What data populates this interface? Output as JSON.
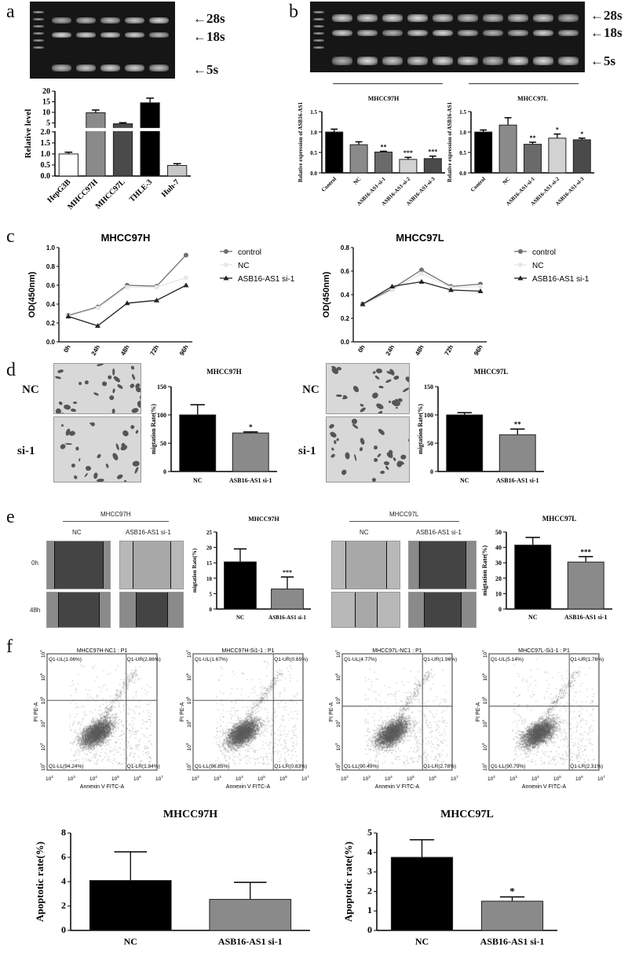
{
  "panel_letters": {
    "a": "a",
    "b": "b",
    "c": "c",
    "d": "d",
    "e": "e",
    "f": "f"
  },
  "gel_labels": {
    "s28": "←28s",
    "s18": "←18s",
    "s5": "←5s"
  },
  "chart_data": [
    {
      "id": "a",
      "type": "bar",
      "title": "",
      "ylabel": "Relative level",
      "categories": [
        "HepG3B",
        "MHCC97H",
        "MHCC97L",
        "THLE-3",
        "Huh-7"
      ],
      "values": [
        1.0,
        9.8,
        4.6,
        14.5,
        0.48
      ],
      "errors": [
        0.08,
        1.3,
        0.5,
        2.2,
        0.08
      ],
      "colors": [
        "#ffffff",
        "#8a8a8a",
        "#4a4a4a",
        "#000000",
        "#c8c8c8"
      ],
      "ylim": [
        0,
        20
      ],
      "axis_break": [
        2,
        3
      ],
      "yticks_lower": [
        "0.0",
        "0.5",
        "1.0",
        "1.5",
        "2.0"
      ],
      "yticks_upper": [
        "5",
        "10",
        "15",
        "20"
      ],
      "sig": [
        "",
        "",
        "",
        "",
        ""
      ]
    },
    {
      "id": "bH",
      "type": "bar",
      "title": "MHCC97H",
      "ylabel": "Relative expression of ASB16-AS1",
      "categories": [
        "Control",
        "NC",
        "ASB16-AS1-si-1",
        "ASB16-AS1-si-2",
        "ASB16-AS1-si-3"
      ],
      "values": [
        1.0,
        0.69,
        0.51,
        0.33,
        0.35
      ],
      "errors": [
        0.07,
        0.07,
        0.02,
        0.05,
        0.06
      ],
      "colors": [
        "#000000",
        "#8a8a8a",
        "#6a6a6a",
        "#d2d2d2",
        "#4a4a4a"
      ],
      "ylim": [
        0,
        1.5
      ],
      "yticks": [
        "0.0",
        "0.5",
        "1.0",
        "1.5"
      ],
      "sig": [
        "",
        "",
        "**",
        "***",
        "***"
      ]
    },
    {
      "id": "bL",
      "type": "bar",
      "title": "MHCC97L",
      "ylabel": "Relative expression of ASB16-AS1",
      "categories": [
        "Control",
        "NC",
        "ASB16-AS1-si-1",
        "ASB16-AS1-si-2",
        "ASB16-AS1-si-3"
      ],
      "values": [
        1.0,
        1.17,
        0.7,
        0.85,
        0.81
      ],
      "errors": [
        0.05,
        0.18,
        0.05,
        0.1,
        0.04
      ],
      "colors": [
        "#000000",
        "#8a8a8a",
        "#6a6a6a",
        "#d2d2d2",
        "#4a4a4a"
      ],
      "ylim": [
        0,
        1.5
      ],
      "yticks": [
        "0.0",
        "0.5",
        "1.0",
        "1.5"
      ],
      "sig": [
        "",
        "",
        "**",
        "*",
        "*"
      ]
    },
    {
      "id": "cH",
      "type": "line",
      "title": "MHCC97H",
      "ylabel": "OD(450nm)",
      "x": [
        "0h",
        "24h",
        "48h",
        "72h",
        "96h"
      ],
      "ylim": [
        0,
        1.0
      ],
      "yticks": [
        "0.0",
        "0.2",
        "0.4",
        "0.6",
        "0.8",
        "1.0"
      ],
      "legend": "right",
      "series": [
        {
          "name": "control",
          "values": [
            0.28,
            0.37,
            0.6,
            0.59,
            0.92
          ],
          "color": "#707070",
          "marker": "circle"
        },
        {
          "name": "NC",
          "values": [
            0.27,
            0.36,
            0.58,
            0.58,
            0.68
          ],
          "color": "#e6e6e6",
          "marker": "square"
        },
        {
          "name": "ASB16-AS1 si-1",
          "values": [
            0.27,
            0.17,
            0.41,
            0.44,
            0.6
          ],
          "color": "#222222",
          "marker": "triangle"
        }
      ]
    },
    {
      "id": "cL",
      "type": "line",
      "title": "MHCC97L",
      "ylabel": "OD(450nm)",
      "x": [
        "0h",
        "24h",
        "48h",
        "72h",
        "96h"
      ],
      "ylim": [
        0,
        0.8
      ],
      "yticks": [
        "0.0",
        "0.2",
        "0.4",
        "0.6",
        "0.8"
      ],
      "legend": "right",
      "series": [
        {
          "name": "control",
          "values": [
            0.32,
            0.45,
            0.61,
            0.47,
            0.49
          ],
          "color": "#707070",
          "marker": "circle"
        },
        {
          "name": "NC",
          "values": [
            0.31,
            0.44,
            0.58,
            0.46,
            0.47
          ],
          "color": "#e6e6e6",
          "marker": "square"
        },
        {
          "name": "ASB16-AS1 si-1",
          "values": [
            0.32,
            0.47,
            0.51,
            0.44,
            0.43
          ],
          "color": "#222222",
          "marker": "triangle"
        }
      ]
    },
    {
      "id": "dH",
      "type": "bar",
      "title": "MHCC97H",
      "ylabel": "migtation Rate(%)",
      "categories": [
        "NC",
        "ASB16-AS1 si-1"
      ],
      "values": [
        100,
        68
      ],
      "errors": [
        18,
        2
      ],
      "colors": [
        "#000000",
        "#8a8a8a"
      ],
      "ylim": [
        0,
        150
      ],
      "yticks": [
        "0",
        "50",
        "100",
        "150"
      ],
      "sig": [
        "",
        "*"
      ]
    },
    {
      "id": "dL",
      "type": "bar",
      "title": "MHCC97L",
      "ylabel": "migtation Rate(%)",
      "categories": [
        "NC",
        "ASB16-AS1 si-1"
      ],
      "values": [
        100,
        65
      ],
      "errors": [
        4,
        10
      ],
      "colors": [
        "#000000",
        "#8a8a8a"
      ],
      "ylim": [
        0,
        150
      ],
      "yticks": [
        "0",
        "50",
        "100",
        "150"
      ],
      "sig": [
        "",
        "**"
      ]
    },
    {
      "id": "eH",
      "type": "bar",
      "title": "MHCC97H",
      "ylabel": "migtation Rate(%)",
      "categories": [
        "NC",
        "ASB16-AS1 si-1"
      ],
      "values": [
        15.3,
        6.5
      ],
      "errors": [
        4.2,
        3.9
      ],
      "colors": [
        "#000000",
        "#8a8a8a"
      ],
      "ylim": [
        0,
        25
      ],
      "yticks": [
        "0",
        "5",
        "10",
        "15",
        "20",
        "25"
      ],
      "sig": [
        "",
        "***"
      ]
    },
    {
      "id": "eL",
      "type": "bar",
      "title": "MHCC97L",
      "ylabel": "migtation Rate(%)",
      "categories": [
        "NC",
        "ASB16-AS1 si-1"
      ],
      "values": [
        41.5,
        30.5
      ],
      "errors": [
        5,
        3.5
      ],
      "colors": [
        "#000000",
        "#8a8a8a"
      ],
      "ylim": [
        0,
        50
      ],
      "yticks": [
        "0",
        "10",
        "20",
        "30",
        "40",
        "50"
      ],
      "sig": [
        "",
        "***"
      ]
    },
    {
      "id": "gH",
      "type": "bar",
      "title": "MHCC97H",
      "ylabel": "Apoptotic rate(%)",
      "categories": [
        "NC",
        "ASB16-AS1 si-1"
      ],
      "values": [
        4.1,
        2.55
      ],
      "errors": [
        2.35,
        1.4
      ],
      "colors": [
        "#000000",
        "#8a8a8a"
      ],
      "ylim": [
        0,
        8
      ],
      "yticks": [
        "0",
        "2",
        "4",
        "6",
        "8"
      ],
      "sig": [
        "",
        ""
      ]
    },
    {
      "id": "gL",
      "type": "bar",
      "title": "MHCC97L",
      "ylabel": "Apoptotic rate(%)",
      "categories": [
        "NC",
        "ASB16-AS1 si-1"
      ],
      "values": [
        3.75,
        1.5
      ],
      "errors": [
        0.9,
        0.22
      ],
      "colors": [
        "#000000",
        "#8a8a8a"
      ],
      "ylim": [
        0,
        5
      ],
      "yticks": [
        "0",
        "1",
        "2",
        "3",
        "4",
        "5"
      ],
      "sig": [
        "",
        "*"
      ]
    }
  ],
  "panel_d": {
    "row_nc": "NC",
    "row_si": "si-1"
  },
  "panel_e": {
    "left": {
      "cell": "MHCC97H",
      "nc": "NC",
      "si": "ASB16-AS1 si-1",
      "t0": "0h",
      "t48": "48h"
    },
    "right": {
      "cell": "MHCC97L",
      "nc": "NC",
      "si": "ASB16-AS1 si-1"
    }
  },
  "flow": {
    "xlabel": "Annexin V FITC-A",
    "ylabel": "PI PE-A",
    "ticks": [
      "2",
      "3",
      "4",
      "5",
      "6",
      "7"
    ],
    "plots": [
      {
        "title": "MHCC97H-NC1 : P1",
        "UL": "Q1-UL(1.06%)",
        "UR": "Q1-UR(2.86%)",
        "LL": "Q1-LL(94.24%)",
        "LR": "Q1-LR(1.84%)"
      },
      {
        "title": "MHCC97H-Si1-1 : P1",
        "UL": "Q1-UL(1.67%)",
        "UR": "Q1-UR(0.65%)",
        "LL": "Q1-LL(96.85%)",
        "LR": "Q1-LR(0.83%)"
      },
      {
        "title": "MHCC97L-NC1 : P1",
        "UL": "Q1-UL(4.77%)",
        "UR": "Q1-UR(1.96%)",
        "LL": "Q1-LL(90.49%)",
        "LR": "Q1-LR(2.78%)"
      },
      {
        "title": "MHCC97L-Si1-1 : P1",
        "UL": "Q1-UL(5.14%)",
        "UR": "Q1-UR(1.76%)",
        "LL": "Q1-LL(90.79%)",
        "LR": "Q1-LR(2.31%)"
      }
    ]
  }
}
